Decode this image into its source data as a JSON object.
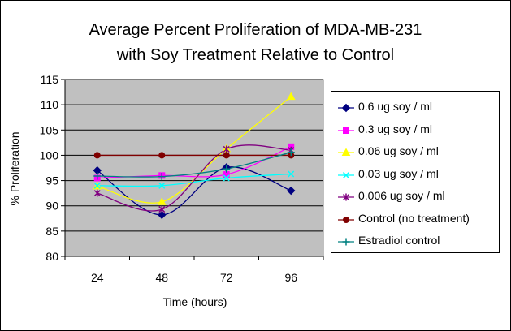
{
  "chart_data": {
    "type": "line",
    "title": [
      "Average Percent Proliferation of MDA-MB-231",
      "with Soy Treatment Relative to Control"
    ],
    "xlabel": "Time (hours)",
    "ylabel": "% Proliferation",
    "categories": [
      "24",
      "48",
      "72",
      "96"
    ],
    "ylim": [
      80,
      115
    ],
    "yticks": [
      80,
      85,
      90,
      95,
      100,
      105,
      110,
      115
    ],
    "grid": true,
    "legend_position": "right",
    "series": [
      {
        "name": "0.6 ug soy / ml",
        "values": [
          97.0,
          88.2,
          97.6,
          93.0
        ],
        "color": "#000080",
        "marker": "diamond"
      },
      {
        "name": "0.3 ug soy / ml",
        "values": [
          95.5,
          96.0,
          96.2,
          101.7
        ],
        "color": "#ff00ff",
        "marker": "square"
      },
      {
        "name": "0.06 ug soy / ml",
        "values": [
          93.9,
          90.8,
          101.3,
          111.6
        ],
        "color": "#ffff00",
        "marker": "triangle"
      },
      {
        "name": "0.03 ug soy / ml",
        "values": [
          94.0,
          94.0,
          95.5,
          96.3
        ],
        "color": "#00ffff",
        "marker": "x"
      },
      {
        "name": "0.006 ug soy / ml",
        "values": [
          92.5,
          89.3,
          101.2,
          101.0
        ],
        "color": "#800080",
        "marker": "star"
      },
      {
        "name": "Control (no treatment)",
        "values": [
          100.0,
          100.0,
          100.0,
          100.0
        ],
        "color": "#800000",
        "marker": "circle"
      },
      {
        "name": "Estradiol control",
        "values": [
          95.9,
          95.8,
          97.3,
          100.6
        ],
        "color": "#008080",
        "marker": "plus"
      }
    ]
  }
}
